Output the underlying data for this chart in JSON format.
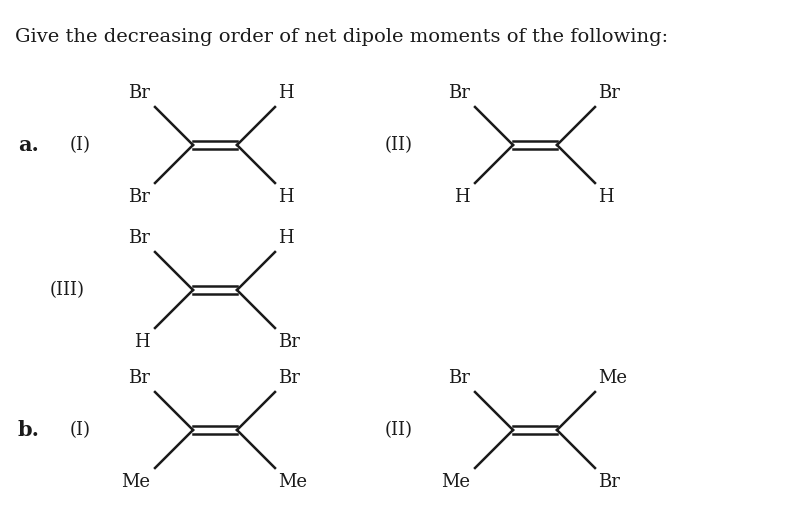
{
  "title": "Give the decreasing order of net dipole moments of the following:",
  "title_fontsize": 14,
  "bg_color": "#ffffff",
  "text_color": "#1a1a1a",
  "structures": {
    "a_label": "a.",
    "b_label": "b.",
    "section_a": {
      "I_label": "(I)",
      "II_label": "(II)",
      "III_label": "(III)",
      "I_top_left": "Br",
      "I_top_right": "H",
      "I_bot_left": "Br",
      "I_bot_right": "H",
      "II_top_left": "Br",
      "II_top_right": "Br",
      "II_bot_left": "H",
      "II_bot_right": "H",
      "III_top_left": "Br",
      "III_top_right": "H",
      "III_bot_left": "H",
      "III_bot_right": "Br"
    },
    "section_b": {
      "I_label": "(I)",
      "II_label": "(II)",
      "I_top_left": "Br",
      "I_top_right": "Br",
      "I_bot_left": "Me",
      "I_bot_right": "Me",
      "II_top_left": "Br",
      "II_top_right": "Me",
      "II_bot_left": "Me",
      "II_bot_right": "Br"
    }
  }
}
